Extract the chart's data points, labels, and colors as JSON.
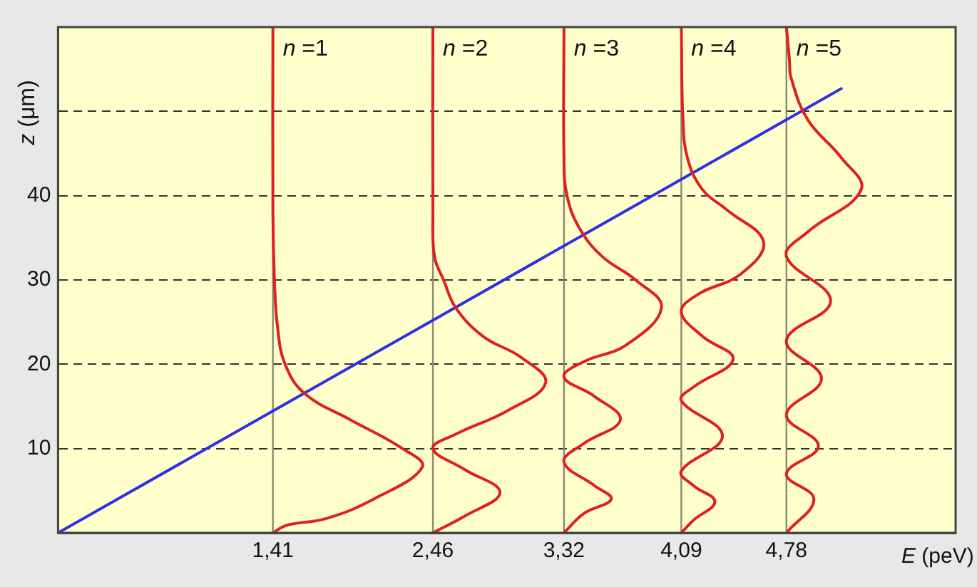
{
  "chart_data": {
    "type": "line",
    "xlabel": "E (peV)",
    "ylabel": "z (μm)",
    "xlim": [
      0,
      5.89
    ],
    "ylim": [
      0,
      60
    ],
    "xticks": [
      {
        "value": 1.41,
        "label": "1,41"
      },
      {
        "value": 2.46,
        "label": "2,46"
      },
      {
        "value": 3.32,
        "label": "3,32"
      },
      {
        "value": 4.09,
        "label": "4,09"
      },
      {
        "value": 4.78,
        "label": "4,78"
      }
    ],
    "yticks": [
      10,
      20,
      30,
      40,
      {
        "value": 50,
        "label": null
      }
    ],
    "grid": "y",
    "legend": false,
    "marker": "none",
    "line_style": "solid",
    "ref_lines": [
      {
        "axis": "x",
        "value": 1.41,
        "label": null,
        "color": "#8a8a70"
      },
      {
        "axis": "x",
        "value": 2.46,
        "label": null,
        "color": "#8a8a70"
      },
      {
        "axis": "x",
        "value": 3.32,
        "label": null,
        "color": "#8a8a70"
      },
      {
        "axis": "x",
        "value": 4.09,
        "label": null,
        "color": "#8a8a70"
      },
      {
        "axis": "x",
        "value": 4.78,
        "label": null,
        "color": "#8a8a70"
      }
    ],
    "series": [
      {
        "name": "n =1",
        "color": "#e02020",
        "x": [
          1.41,
          1.5,
          1.76,
          2.07,
          2.39,
          2.26,
          1.92,
          1.62,
          1.49,
          1.44,
          1.42,
          1.41,
          1.41
        ],
        "values": [
          0,
          0.9,
          1.7,
          4,
          7.8,
          10,
          13.4,
          16.5,
          20,
          24.5,
          30,
          38,
          60
        ]
      },
      {
        "name": "n =2",
        "color": "#e02020",
        "x": [
          2.46,
          2.67,
          2.9,
          2.67,
          2.46,
          2.61,
          2.95,
          3.2,
          3.04,
          2.79,
          2.61,
          2.53,
          2.47,
          2.46,
          2.46
        ],
        "values": [
          0,
          2,
          4.8,
          7.5,
          10,
          11.7,
          14.5,
          17.8,
          20.8,
          23.3,
          26.7,
          30,
          32.8,
          38,
          60
        ]
      },
      {
        "name": "n =3",
        "color": "#e02020",
        "x": [
          3.32,
          3.45,
          3.63,
          3.52,
          3.32,
          3.45,
          3.69,
          3.52,
          3.32,
          3.45,
          3.73,
          3.96,
          3.79,
          3.57,
          3.42,
          3.34,
          3.32,
          3.32
        ],
        "values": [
          0,
          2.3,
          4,
          5.6,
          8.4,
          10.6,
          13.4,
          16.2,
          18.5,
          20.3,
          22.3,
          26.7,
          30,
          32.8,
          36.2,
          40,
          44.5,
          60
        ]
      },
      {
        "name": "n =4",
        "color": "#e02020",
        "x": [
          4.09,
          4.17,
          4.31,
          4.17,
          4.09,
          4.36,
          4.09,
          4.17,
          4.43,
          4.23,
          4.09,
          4.2,
          4.48,
          4.63,
          4.39,
          4.23,
          4.13,
          4.1,
          4.09
        ],
        "values": [
          0,
          1.5,
          3.7,
          5.6,
          7.3,
          11.5,
          15.7,
          17.3,
          20.6,
          23.3,
          26.2,
          28.3,
          30.7,
          34.5,
          38.3,
          40.7,
          44.5,
          49.5,
          60
        ]
      },
      {
        "name": "n =5",
        "color": "#e02020",
        "x": [
          4.78,
          4.96,
          4.78,
          4.99,
          4.78,
          5.01,
          4.78,
          5.07,
          4.78,
          4.92,
          5.27,
          5.14,
          4.92,
          4.81,
          4.8,
          4.78
        ],
        "values": [
          0,
          4,
          7,
          10.3,
          14,
          18.3,
          22.8,
          27.5,
          32.8,
          35.7,
          40.7,
          44.5,
          49,
          54,
          56,
          60
        ]
      },
      {
        "color": "#3030e0",
        "x": [
          0,
          5.14
        ],
        "values": [
          0,
          52.7
        ]
      }
    ]
  }
}
